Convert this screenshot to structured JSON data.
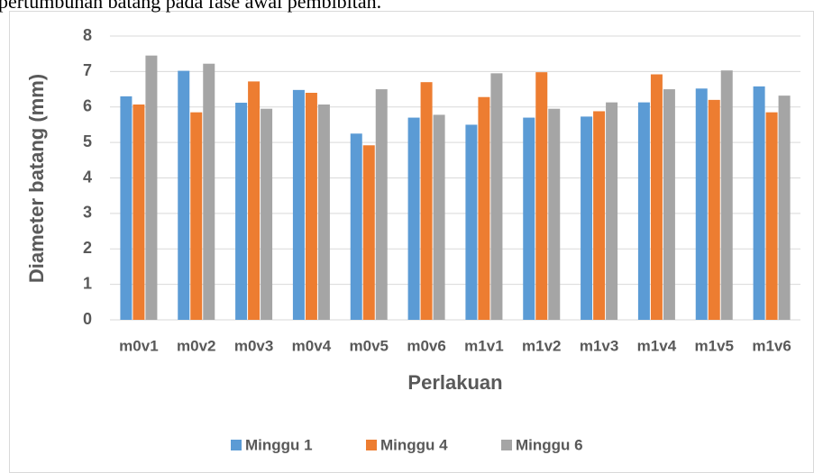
{
  "caption": "pertumbuhan batang pada fase awal pembibitan.",
  "chart_data": {
    "type": "bar",
    "y_label": "Diameter batang (mm)",
    "x_label": "Perlakuan",
    "categories": [
      "m0v1",
      "m0v2",
      "m0v3",
      "m0v4",
      "m0v5",
      "m0v6",
      "m1v1",
      "m1v2",
      "m1v3",
      "m1v4",
      "m1v5",
      "m1v6"
    ],
    "series": [
      {
        "name": "Minggu 1",
        "color": "#5b9bd5",
        "values": [
          6.3,
          7.02,
          6.12,
          6.48,
          5.25,
          5.7,
          5.5,
          5.7,
          5.73,
          6.13,
          6.52,
          6.58
        ]
      },
      {
        "name": "Minggu 4",
        "color": "#ed7d31",
        "values": [
          6.07,
          5.85,
          6.72,
          6.4,
          4.92,
          6.7,
          6.28,
          6.98,
          5.88,
          6.92,
          6.2,
          5.85
        ]
      },
      {
        "name": "Minggu 6",
        "color": "#a5a5a5",
        "values": [
          7.45,
          7.22,
          5.95,
          6.07,
          6.5,
          5.78,
          6.95,
          5.95,
          6.13,
          6.5,
          7.03,
          6.32
        ]
      }
    ],
    "ylim": [
      0,
      8
    ],
    "yticks": [
      0,
      1,
      2,
      3,
      4,
      5,
      6,
      7,
      8
    ],
    "grid": true,
    "legend": "bottom"
  }
}
